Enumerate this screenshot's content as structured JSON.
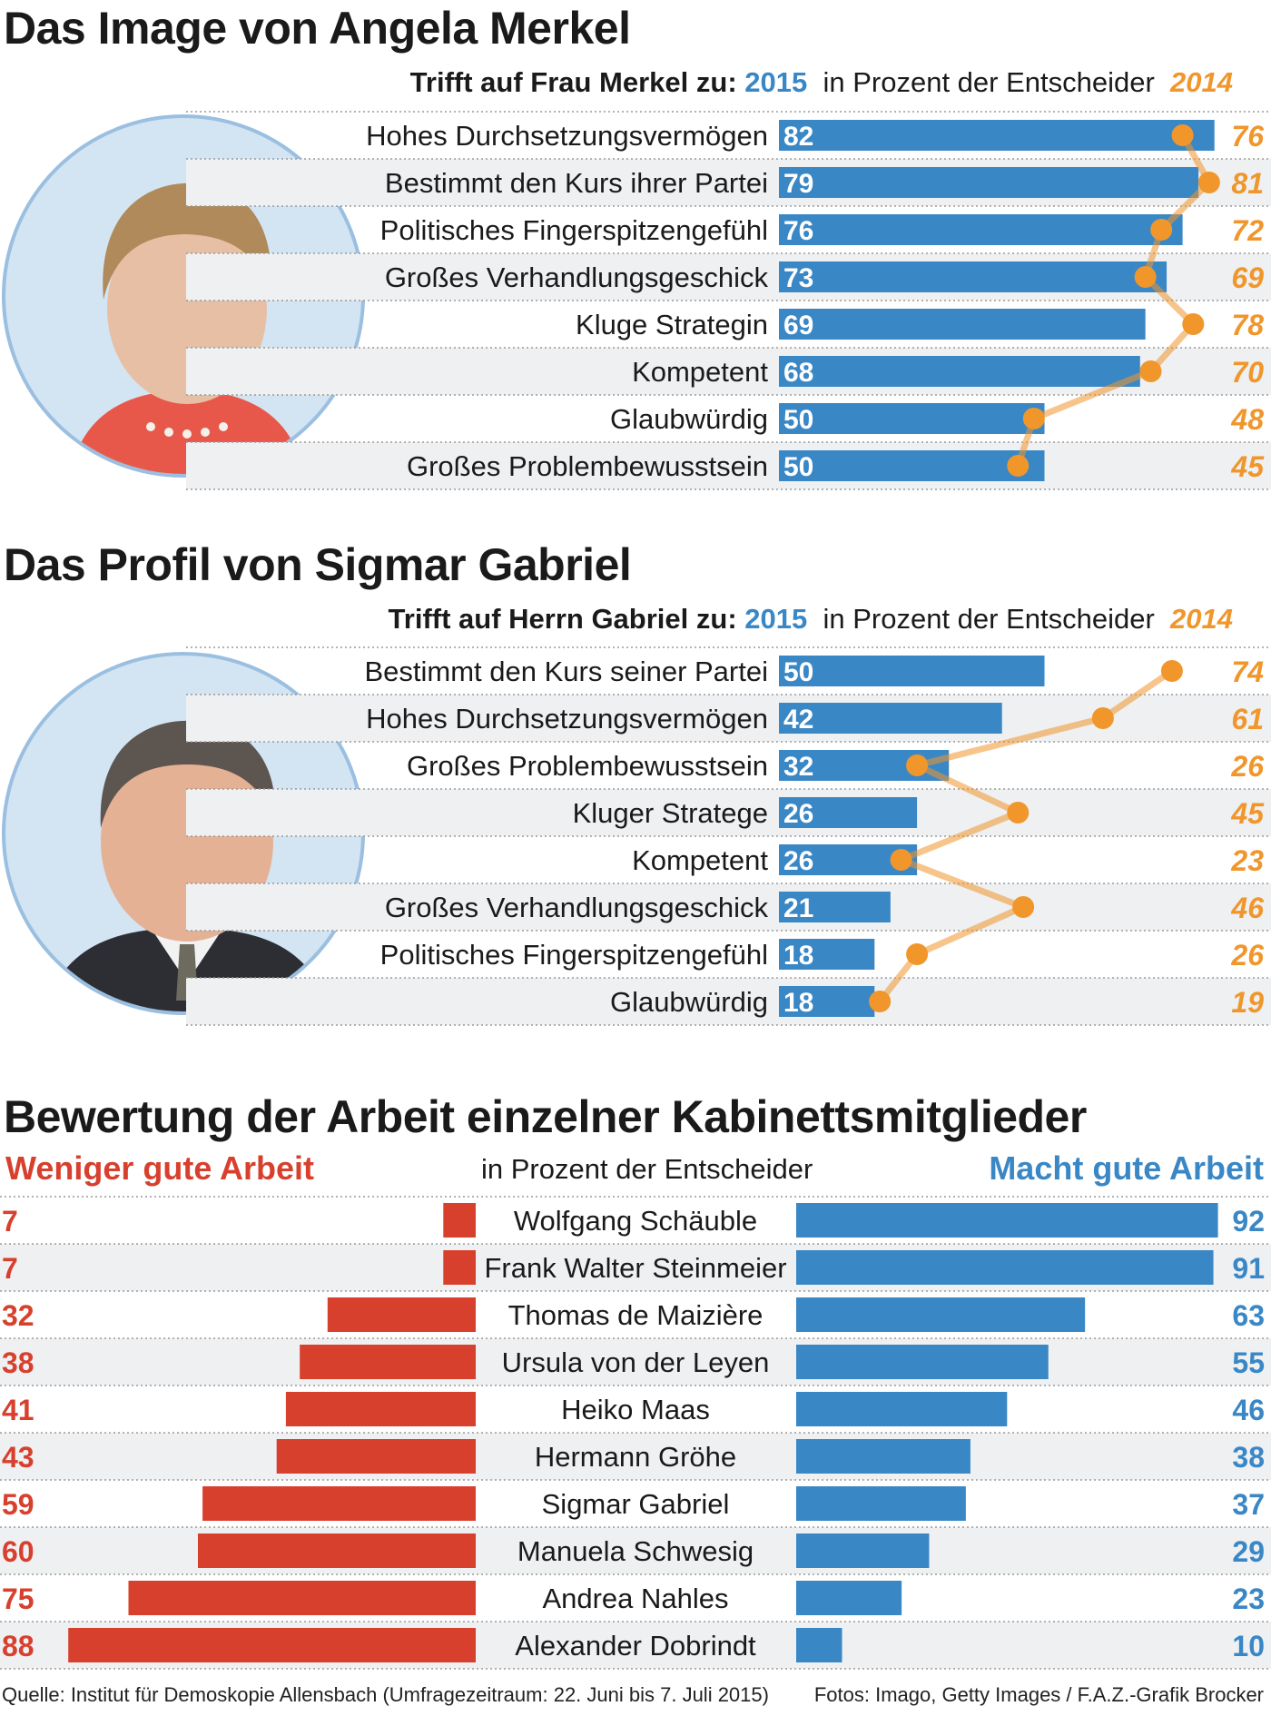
{
  "section_merkel": {
    "title": "Das Image von Angela Merkel",
    "header_prefix": "Trifft auf Frau Merkel zu:",
    "header_year_current": "2015",
    "header_unit": "in Prozent der Entscheider",
    "header_year_prev": "2014"
  },
  "section_gabriel": {
    "title": "Das Profil von Sigmar Gabriel",
    "header_prefix": "Trifft auf Herrn Gabriel zu:",
    "header_year_current": "2015",
    "header_unit": "in Prozent der Entscheider",
    "header_year_prev": "2014"
  },
  "section_cabinet": {
    "title": "Bewertung der Arbeit einzelner Kabinettsmitglieder",
    "left_label": "Weniger gute Arbeit",
    "center_label": "in Prozent der Entscheider",
    "right_label": "Macht gute Arbeit"
  },
  "footer": {
    "source": "Quelle: Institut für Demoskopie Allensbach (Umfragezeitraum: 22. Juni bis 7. Juli 2015)",
    "credits": "Fotos: Imago, Getty Images / F.A.Z.-Grafik Brocker"
  },
  "colors": {
    "bar_2015": "#3a87c6",
    "marker_2014": "#f0962b",
    "bar_negative": "#d8402e",
    "row_stripe": "#eef0f2"
  },
  "chart_data": [
    {
      "type": "bar",
      "title": "Das Image von Angela Merkel",
      "categories": [
        "Hohes Durchsetzungsvermögen",
        "Bestimmt den Kurs ihrer Partei",
        "Politisches Fingerspitzengefühl",
        "Großes Verhandlungsgeschick",
        "Kluge Strategin",
        "Kompetent",
        "Glaubwürdig",
        "Großes Problembewusstsein"
      ],
      "series": [
        {
          "name": "2015",
          "values": [
            82,
            79,
            76,
            73,
            69,
            68,
            50,
            50
          ]
        },
        {
          "name": "2014",
          "values": [
            76,
            81,
            72,
            69,
            78,
            70,
            48,
            45
          ]
        }
      ],
      "xlim": [
        0,
        85
      ]
    },
    {
      "type": "bar",
      "title": "Das Profil von Sigmar Gabriel",
      "categories": [
        "Bestimmt den Kurs seiner Partei",
        "Hohes Durchsetzungsvermögen",
        "Großes Problembewusstsein",
        "Kluger Stratege",
        "Kompetent",
        "Großes Verhandlungsgeschick",
        "Politisches Fingerspitzengefühl",
        "Glaubwürdig"
      ],
      "series": [
        {
          "name": "2015",
          "values": [
            50,
            42,
            32,
            26,
            26,
            21,
            18,
            18
          ]
        },
        {
          "name": "2014",
          "values": [
            74,
            61,
            26,
            45,
            23,
            46,
            26,
            19
          ]
        }
      ],
      "xlim": [
        0,
        85
      ]
    },
    {
      "type": "bar",
      "title": "Bewertung der Arbeit einzelner Kabinettsmitglieder",
      "categories": [
        "Wolfgang Schäuble",
        "Frank Walter Steinmeier",
        "Thomas de Maizière",
        "Ursula von der Leyen",
        "Heiko Maas",
        "Hermann Gröhe",
        "Sigmar Gabriel",
        "Manuela Schwesig",
        "Andrea Nahles",
        "Alexander Dobrindt"
      ],
      "series": [
        {
          "name": "Weniger gute Arbeit",
          "values": [
            7,
            7,
            32,
            38,
            41,
            43,
            59,
            60,
            75,
            88
          ]
        },
        {
          "name": "Macht gute Arbeit",
          "values": [
            92,
            91,
            63,
            55,
            46,
            38,
            37,
            29,
            23,
            10
          ]
        }
      ]
    }
  ]
}
